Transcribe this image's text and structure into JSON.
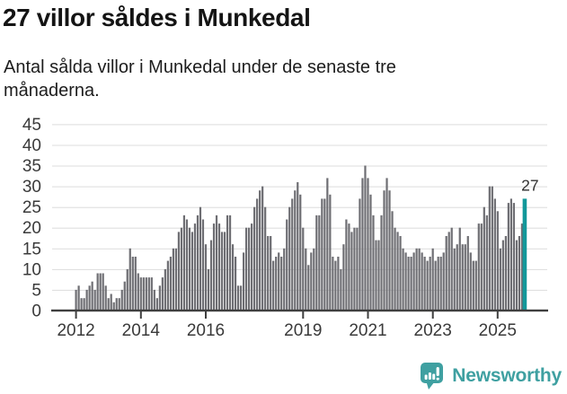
{
  "header": {
    "title": "27 villor såldes i Munkedal",
    "subtitle": "Antal sålda villor i Munkedal under de senaste tre månaderna."
  },
  "chart_data": {
    "type": "bar",
    "title": "27 villor såldes i Munkedal",
    "subtitle": "Antal sålda villor i Munkedal under de senaste tre månaderna.",
    "x_start_month": "2012-01",
    "x_frequency": "monthly",
    "values": [
      5,
      6,
      3,
      3,
      5,
      6,
      7,
      5,
      9,
      9,
      9,
      6,
      3,
      4,
      2,
      3,
      3,
      5,
      7,
      10,
      15,
      13,
      13,
      9,
      8,
      8,
      8,
      8,
      8,
      5,
      3,
      6,
      8,
      10,
      12,
      13,
      15,
      15,
      19,
      20,
      23,
      22,
      20,
      19,
      21,
      23,
      25,
      22,
      16,
      10,
      17,
      21,
      23,
      21,
      19,
      19,
      23,
      23,
      16,
      13,
      6,
      6,
      14,
      20,
      20,
      21,
      25,
      27,
      29,
      30,
      25,
      18,
      18,
      12,
      13,
      14,
      13,
      15,
      22,
      25,
      27,
      29,
      31,
      28,
      20,
      15,
      11,
      14,
      15,
      23,
      23,
      27,
      27,
      32,
      28,
      13,
      12,
      13,
      10,
      16,
      22,
      21,
      19,
      20,
      20,
      27,
      32,
      35,
      32,
      28,
      23,
      17,
      17,
      23,
      29,
      32,
      29,
      24,
      20,
      19,
      18,
      15,
      14,
      13,
      13,
      14,
      15,
      15,
      14,
      13,
      12,
      13,
      15,
      12,
      13,
      13,
      14,
      18,
      19,
      20,
      15,
      16,
      20,
      16,
      16,
      18,
      14,
      12,
      12,
      21,
      21,
      25,
      23,
      30,
      30,
      27,
      24,
      15,
      17,
      18,
      26,
      27,
      26,
      17,
      18,
      21,
      27
    ],
    "highlight_last_bar": true,
    "last_value_annotation": "27",
    "ylim": [
      0,
      45
    ],
    "y_ticks": [
      0,
      5,
      10,
      15,
      20,
      25,
      30,
      35,
      40,
      45
    ],
    "x_ticks": [
      {
        "label": "2012",
        "month_index": 0
      },
      {
        "label": "2014",
        "month_index": 24
      },
      {
        "label": "2016",
        "month_index": 48
      },
      {
        "label": "2019",
        "month_index": 84
      },
      {
        "label": "2021",
        "month_index": 108
      },
      {
        "label": "2023",
        "month_index": 132
      },
      {
        "label": "2025",
        "month_index": 156
      }
    ],
    "grid": "horizontal",
    "legend": "none",
    "colors": {
      "bar": "#6e6e73",
      "highlight": "#13989a",
      "gridline": "#dcdcdc",
      "axis": "#3f3f3f",
      "tick_label": "#3a3a3a",
      "annotation": "#303030"
    }
  },
  "footer": {
    "brand": "Newsworthy",
    "brand_color": "#3fa0a1",
    "logo_icon": "bar-chart-speech-bubble"
  }
}
